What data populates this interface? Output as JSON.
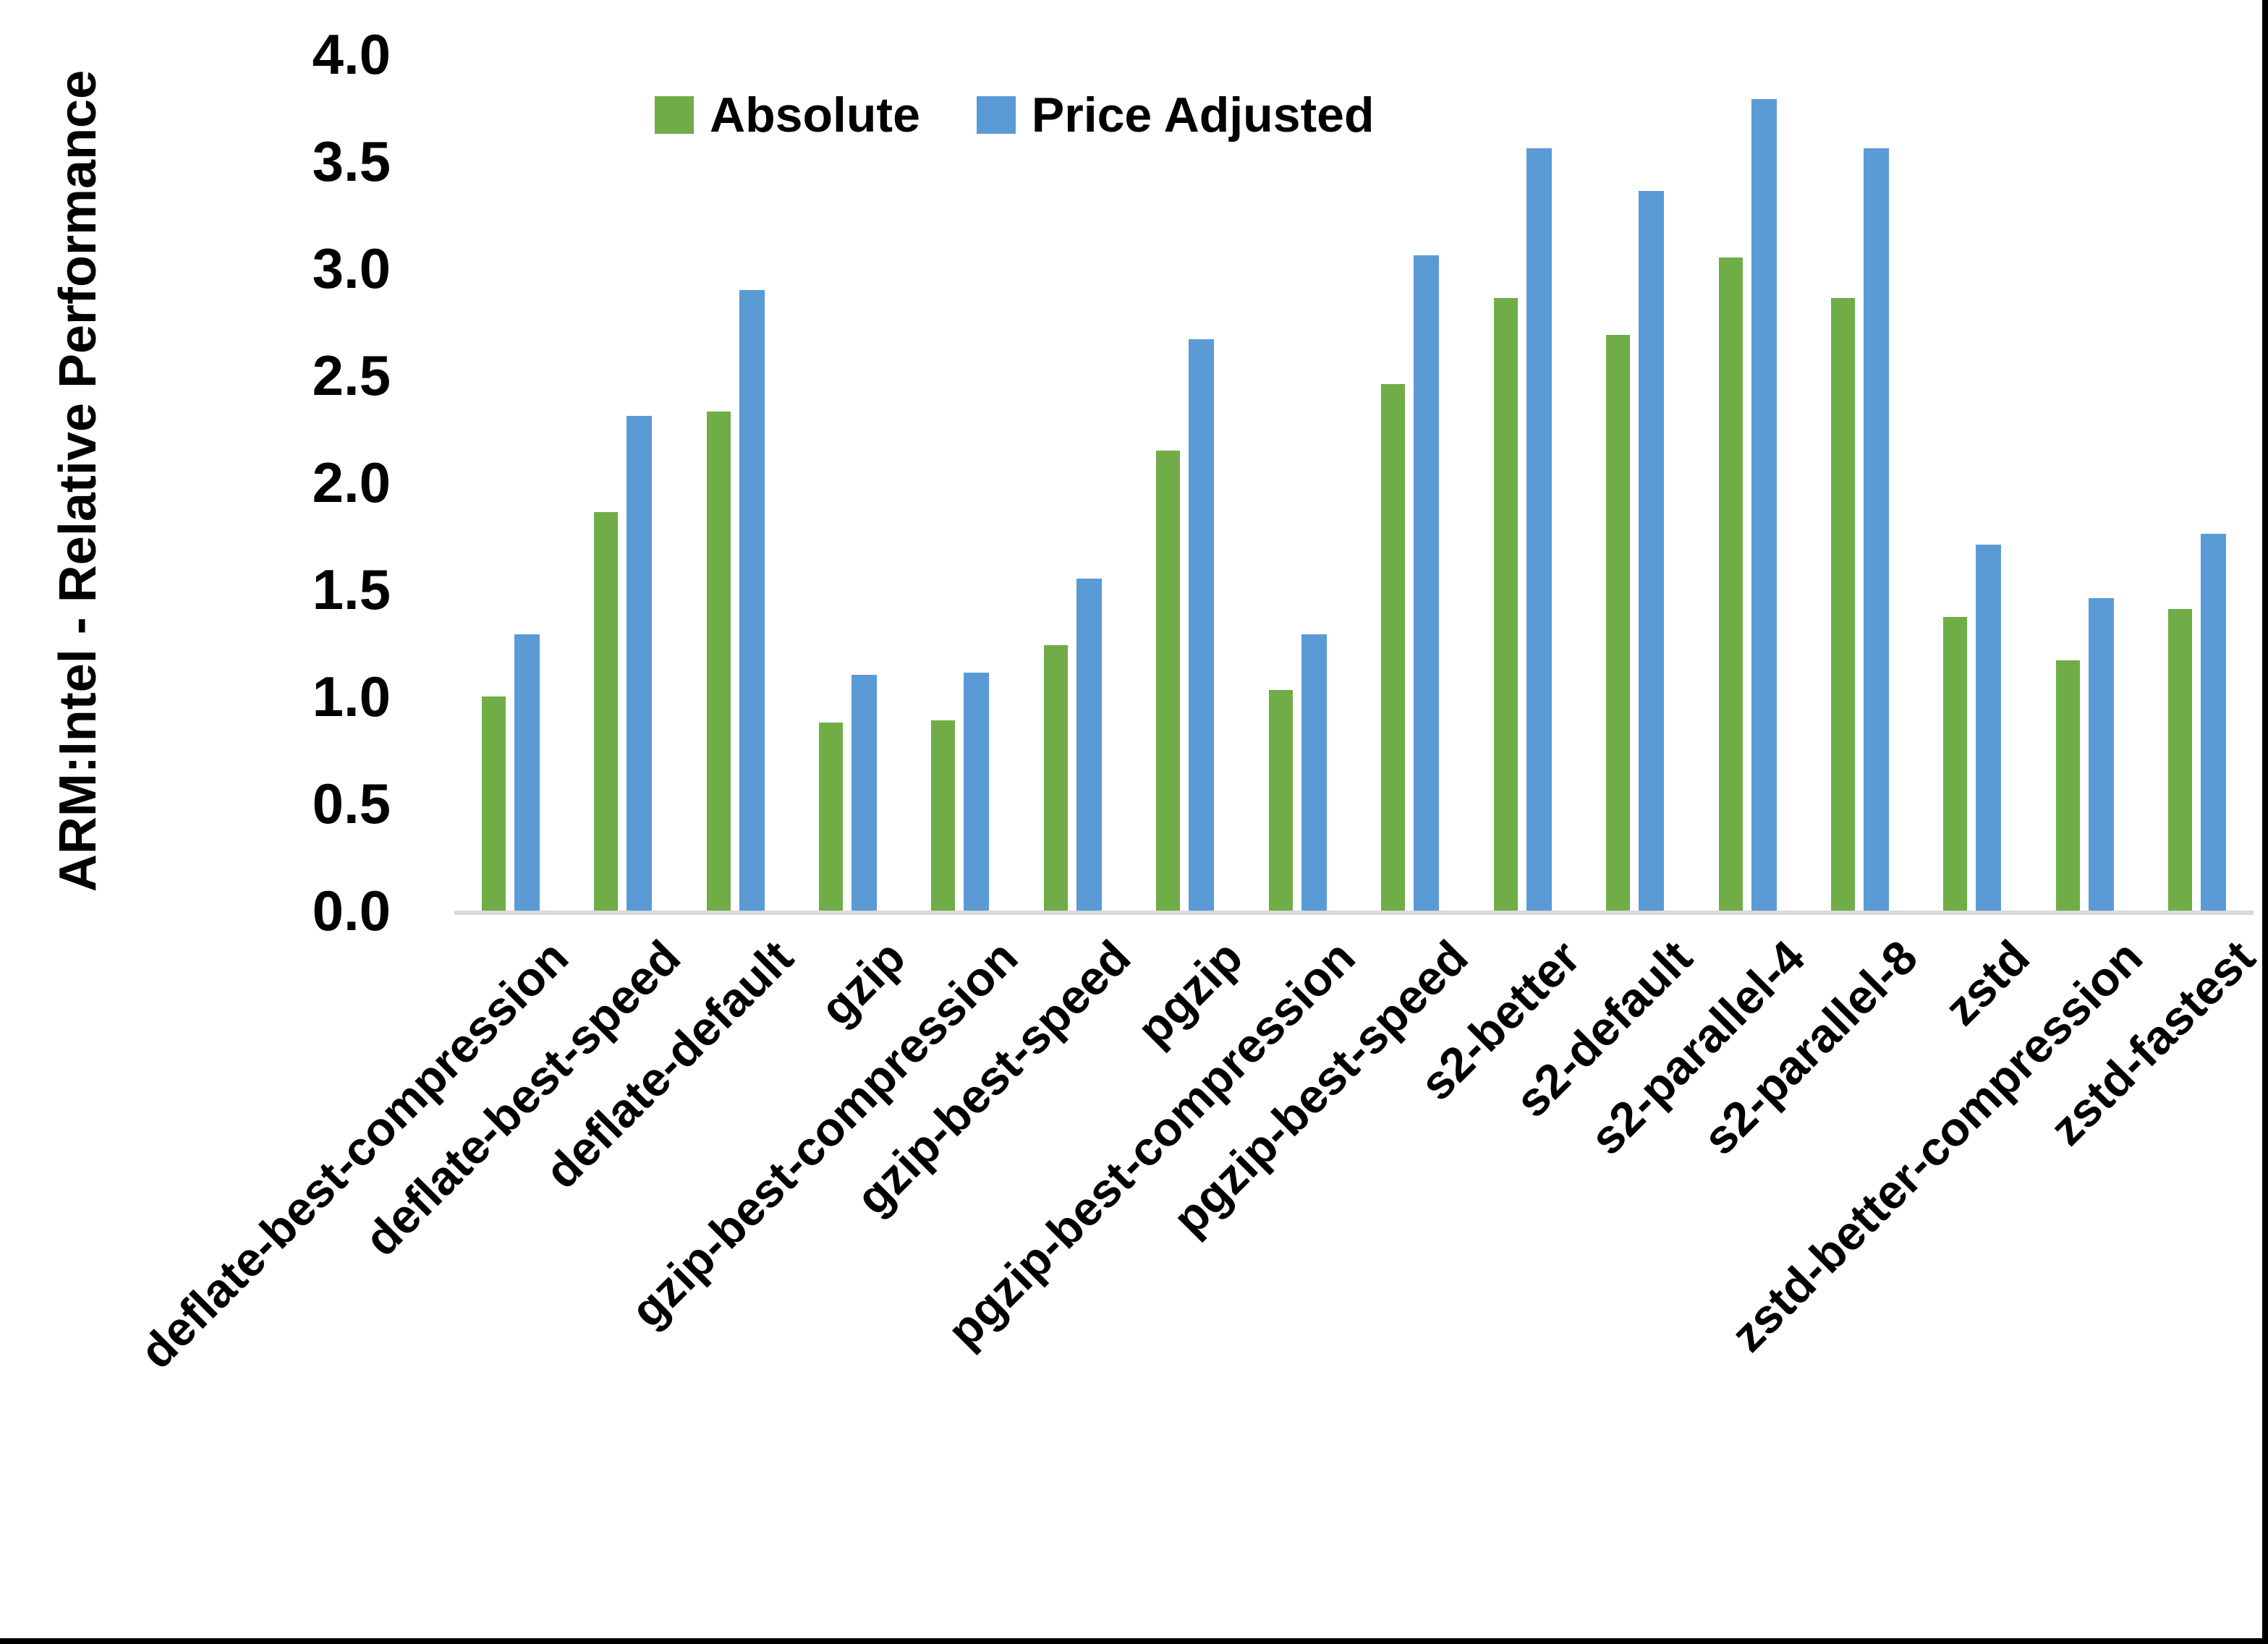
{
  "page": {
    "background": "#ffffff",
    "frame_color": "#000000"
  },
  "chart_data": {
    "type": "bar",
    "title": "",
    "xlabel": "",
    "ylabel": "ARM:Intel - Relative Performance",
    "ylim": [
      0,
      4
    ],
    "ytick_step": 0.5,
    "ytick_labels": [
      "0.0",
      "0.5",
      "1.0",
      "1.5",
      "2.0",
      "2.5",
      "3.0",
      "3.5",
      "4.0"
    ],
    "grid": false,
    "legend_position": "top-center",
    "axis_line_color": "#D9D9D9",
    "categories": [
      "deflate-best-compression",
      "deflate-best-speed",
      "deflate-default",
      "gzip",
      "gzip-best-compression",
      "gzip-best-speed",
      "pgzip",
      "pgzip-best-compression",
      "pgzip-best-speed",
      "s2-better",
      "s2-default",
      "s2-parallel-4",
      "s2-parallel-8",
      "zstd",
      "zstd-better-compression",
      "zstd-fastest"
    ],
    "series": [
      {
        "name": "Absolute",
        "color": "#70AD47",
        "values": [
          1.0,
          1.86,
          2.33,
          0.88,
          0.89,
          1.24,
          2.15,
          1.03,
          2.46,
          2.86,
          2.69,
          3.05,
          2.86,
          1.37,
          1.17,
          1.41
        ]
      },
      {
        "name": "Price Adjusted",
        "color": "#5B9BD5",
        "values": [
          1.29,
          2.31,
          2.9,
          1.1,
          1.11,
          1.55,
          2.67,
          1.29,
          3.06,
          3.56,
          3.36,
          3.79,
          3.56,
          1.71,
          1.46,
          1.76
        ]
      }
    ]
  }
}
